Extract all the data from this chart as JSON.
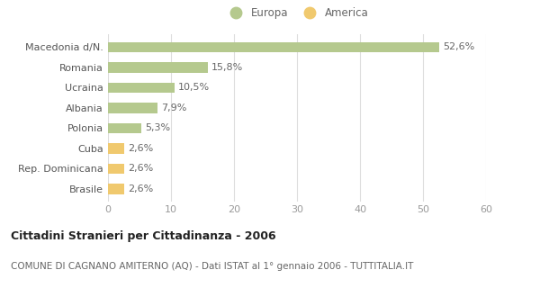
{
  "categories": [
    "Brasile",
    "Rep. Dominicana",
    "Cuba",
    "Polonia",
    "Albania",
    "Ucraina",
    "Romania",
    "Macedonia d/N."
  ],
  "values": [
    2.6,
    2.6,
    2.6,
    5.3,
    7.9,
    10.5,
    15.8,
    52.6
  ],
  "bar_colors": [
    "#f0c96e",
    "#f0c96e",
    "#f0c96e",
    "#b5c98e",
    "#b5c98e",
    "#b5c98e",
    "#b5c98e",
    "#b5c98e"
  ],
  "labels": [
    "2,6%",
    "2,6%",
    "2,6%",
    "5,3%",
    "7,9%",
    "10,5%",
    "15,8%",
    "52,6%"
  ],
  "legend_europa_color": "#b5c98e",
  "legend_america_color": "#f0c96e",
  "title": "Cittadini Stranieri per Cittadinanza - 2006",
  "subtitle": "COMUNE DI CAGNANO AMITERNO (AQ) - Dati ISTAT al 1° gennaio 2006 - TUTTITALIA.IT",
  "xlim": [
    0,
    60
  ],
  "xticks": [
    0,
    10,
    20,
    30,
    40,
    50,
    60
  ],
  "background_color": "#ffffff",
  "bar_height": 0.5,
  "grid_color": "#dddddd",
  "label_fontsize": 8,
  "ytick_fontsize": 8,
  "xtick_fontsize": 8,
  "title_fontsize": 9,
  "subtitle_fontsize": 7.5,
  "legend_fontsize": 8.5
}
